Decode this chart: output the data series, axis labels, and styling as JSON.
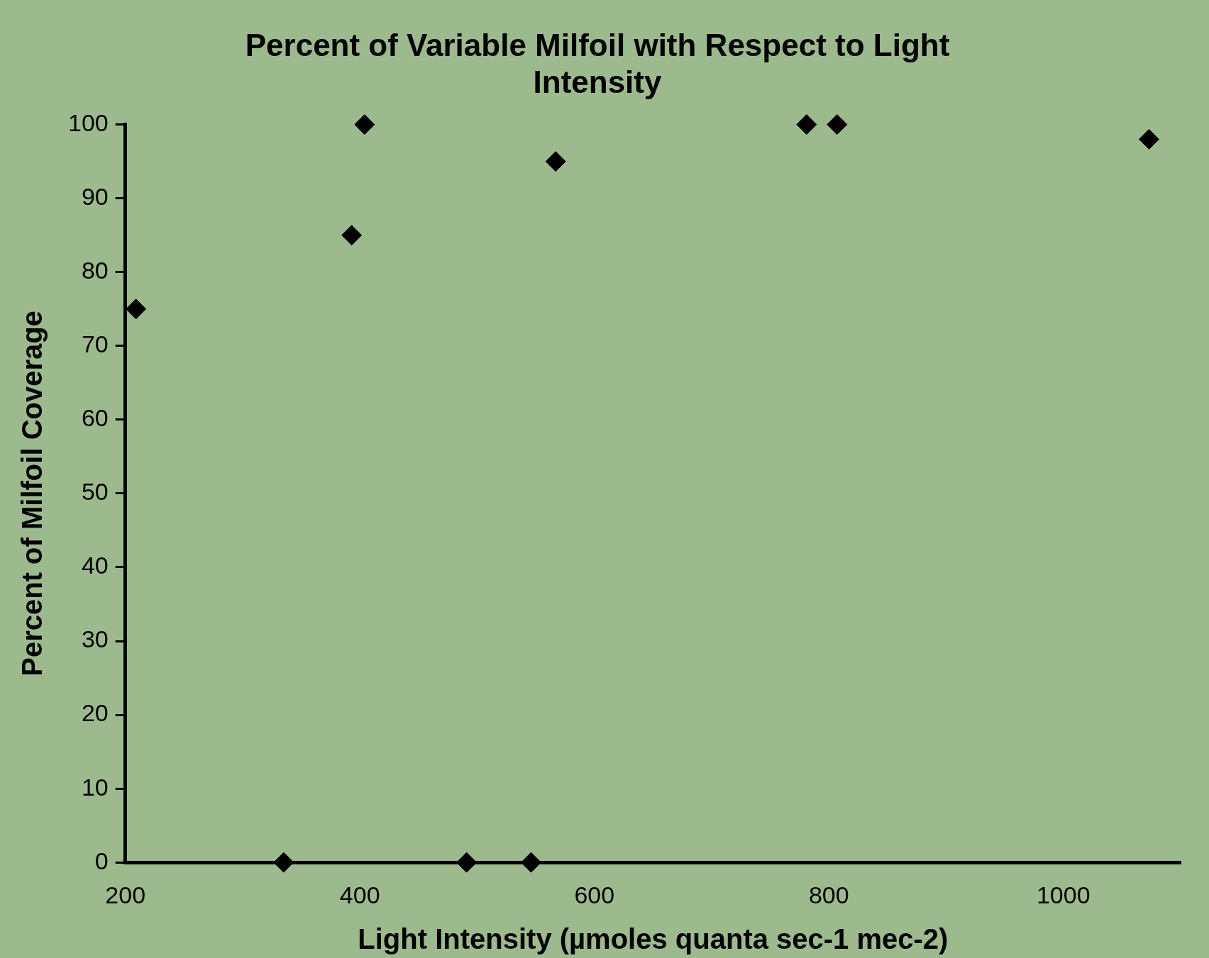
{
  "chart_data": {
    "type": "scatter",
    "title": "Percent of Variable Milfoil with Respect to Light Intensity",
    "xlabel": "Light Intensity (µmoles quanta sec-1 mec-2)",
    "ylabel": "Percent of Milfoil Coverage",
    "x": [
      209,
      335,
      393,
      404,
      491,
      546,
      567,
      781,
      807,
      1073
    ],
    "series": [
      {
        "color": "#000000",
        "values": [
          75,
          0,
          85,
          100,
          0,
          0,
          95,
          100,
          100,
          98
        ]
      }
    ],
    "xlim": [
      200,
      1100
    ],
    "xticks": [
      200,
      400,
      600,
      800,
      1000
    ],
    "ylim": [
      0,
      100
    ],
    "yticks": [
      0,
      10,
      20,
      30,
      40,
      50,
      60,
      70,
      80,
      90,
      100
    ],
    "grid": false,
    "legend": false,
    "marker": "diamond"
  }
}
